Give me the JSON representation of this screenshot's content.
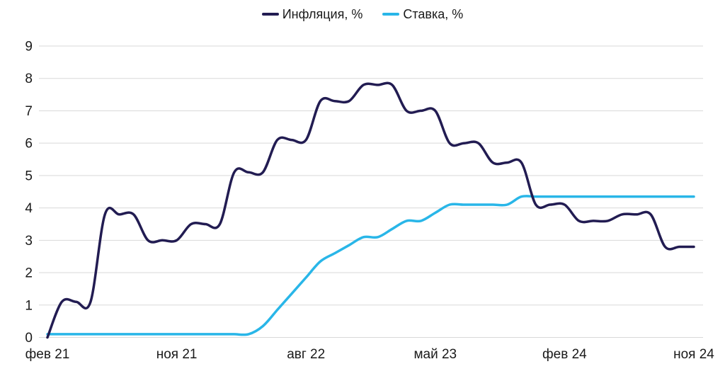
{
  "legend": {
    "items": [
      {
        "name": "inflation",
        "label": "Инфляция, %",
        "color": "#221c52"
      },
      {
        "name": "rate",
        "label": "Ставка, %",
        "color": "#29b6e8"
      }
    ]
  },
  "chart_data": {
    "type": "line",
    "title": "",
    "xlabel": "",
    "ylabel": "",
    "ylim": [
      0,
      9
    ],
    "y_ticks": [
      0,
      1,
      2,
      3,
      4,
      5,
      6,
      7,
      8,
      9
    ],
    "grid": "horizontal",
    "legend_position": "top-center",
    "n_points": 46,
    "x_tick_labels": [
      {
        "label": "фев 21",
        "index": 0
      },
      {
        "label": "ноя 21",
        "index": 9
      },
      {
        "label": "авг 22",
        "index": 18
      },
      {
        "label": "май 23",
        "index": 27
      },
      {
        "label": "фев 24",
        "index": 36
      },
      {
        "label": "ноя 24",
        "index": 45
      }
    ],
    "series": [
      {
        "name": "Инфляция, %",
        "color": "#221c52",
        "values": [
          0.0,
          1.1,
          1.1,
          1.1,
          3.8,
          3.8,
          3.8,
          3.0,
          3.0,
          3.0,
          3.5,
          3.5,
          3.5,
          5.1,
          5.1,
          5.1,
          6.1,
          6.1,
          6.1,
          7.3,
          7.3,
          7.3,
          7.8,
          7.8,
          7.8,
          7.0,
          7.0,
          7.0,
          6.0,
          6.0,
          6.0,
          5.4,
          5.4,
          5.4,
          4.1,
          4.1,
          4.1,
          3.6,
          3.6,
          3.6,
          3.8,
          3.8,
          3.8,
          2.8,
          2.8,
          2.8
        ]
      },
      {
        "name": "Ставка, %",
        "color": "#29b6e8",
        "values": [
          0.1,
          0.1,
          0.1,
          0.1,
          0.1,
          0.1,
          0.1,
          0.1,
          0.1,
          0.1,
          0.1,
          0.1,
          0.1,
          0.1,
          0.1,
          0.35,
          0.85,
          1.35,
          1.85,
          2.35,
          2.6,
          2.85,
          3.1,
          3.1,
          3.35,
          3.6,
          3.6,
          3.85,
          4.1,
          4.1,
          4.1,
          4.1,
          4.1,
          4.35,
          4.35,
          4.35,
          4.35,
          4.35,
          4.35,
          4.35,
          4.35,
          4.35,
          4.35,
          4.35,
          4.35,
          4.35
        ]
      }
    ]
  },
  "colors": {
    "background": "#ffffff",
    "grid": "#d9d9d9",
    "text": "#1a1a1a"
  }
}
